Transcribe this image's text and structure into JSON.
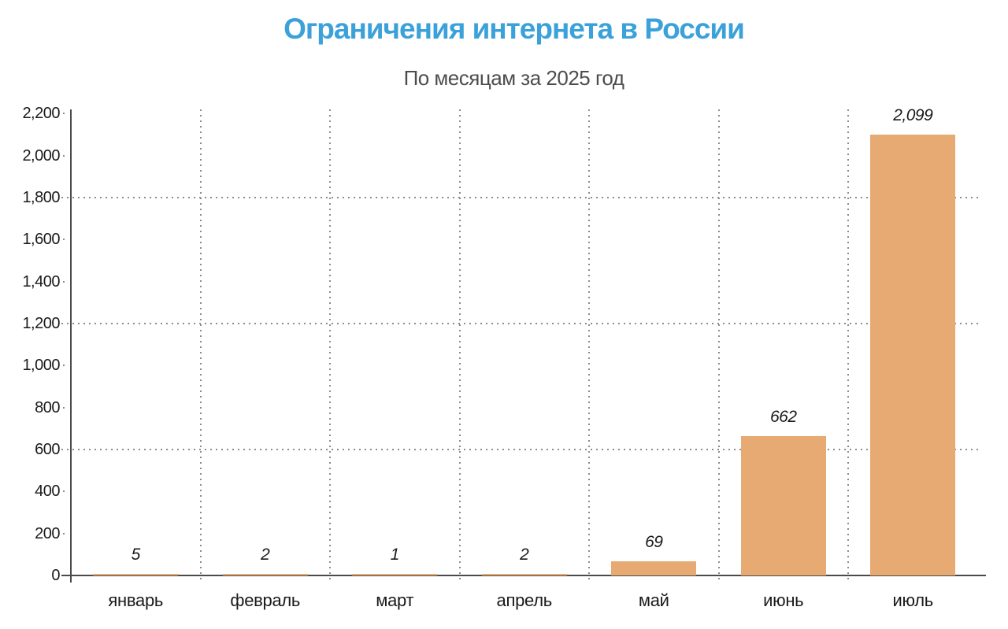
{
  "chart": {
    "title": "Ограничения интернета в России",
    "subtitle": "По месяцам за 2025 год",
    "colors": {
      "title": "#3BA1DA",
      "subtitle": "#4d4d4d",
      "bar": "#E6AA72",
      "axis": "#4a4a4a",
      "grid": "#8c8c8c",
      "text": "#1a1a1a"
    }
  },
  "chart_data": {
    "type": "bar",
    "title": "Ограничения интернета в России",
    "subtitle": "По месяцам за 2025 год",
    "categories": [
      "январь",
      "февраль",
      "март",
      "апрель",
      "май",
      "июнь",
      "июль"
    ],
    "values": [
      5,
      2,
      1,
      2,
      69,
      662,
      2099
    ],
    "value_labels": [
      "5",
      "2",
      "1",
      "2",
      "69",
      "662",
      "2,099"
    ],
    "xlabel": "",
    "ylabel": "",
    "ylim": [
      0,
      2200
    ],
    "ytick_step": 200,
    "ytick_labels": [
      "0",
      "200",
      "400",
      "600",
      "800",
      "1,000",
      "1,200",
      "1,400",
      "1,600",
      "1,800",
      "2,000",
      "2,200"
    ],
    "major_gridlines_y": [
      600,
      1200,
      1800
    ],
    "grid_style": "dotted",
    "legend_position": "none"
  }
}
